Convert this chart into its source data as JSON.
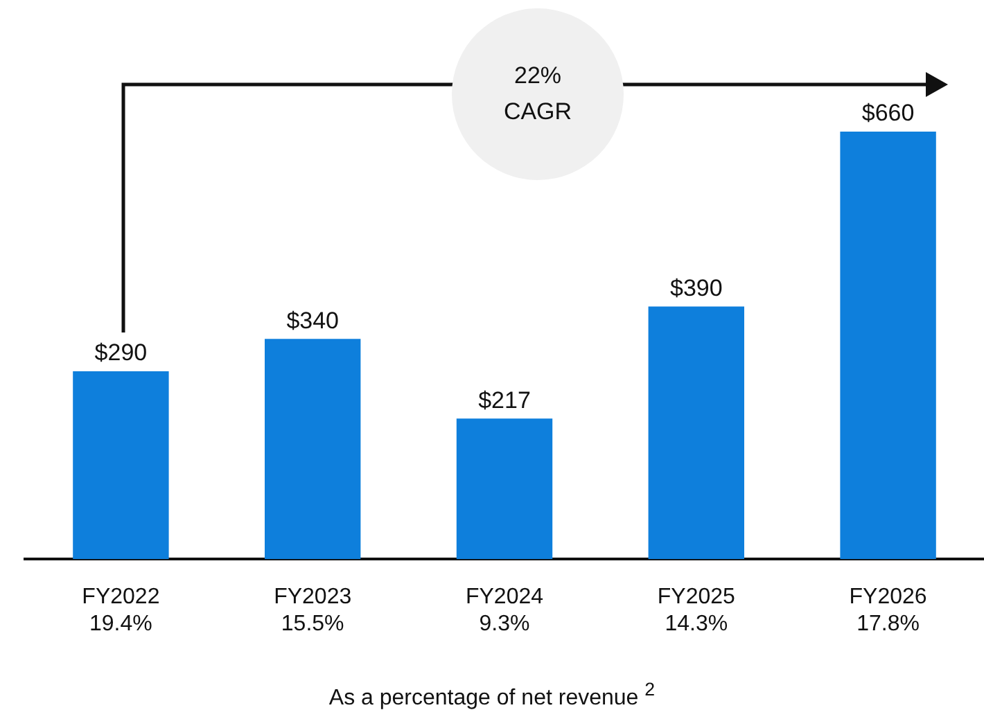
{
  "chart_data": {
    "type": "bar",
    "categories": [
      "FY2022\n19.4%",
      "FY2023\n15.5%",
      "FY2024\n9.3%",
      "FY2025\n14.3%",
      "FY2026\n17.8%"
    ],
    "values": [
      290,
      340,
      217,
      390,
      660
    ],
    "value_labels": [
      "$290",
      "$340",
      "$217",
      "$390",
      "$660"
    ],
    "color": "#0e7fdc",
    "grid": false,
    "legend": false,
    "xlabel": "As a percentage of net revenue $^{2}$",
    "annotations": [
      "22%\nCAGR"
    ]
  }
}
